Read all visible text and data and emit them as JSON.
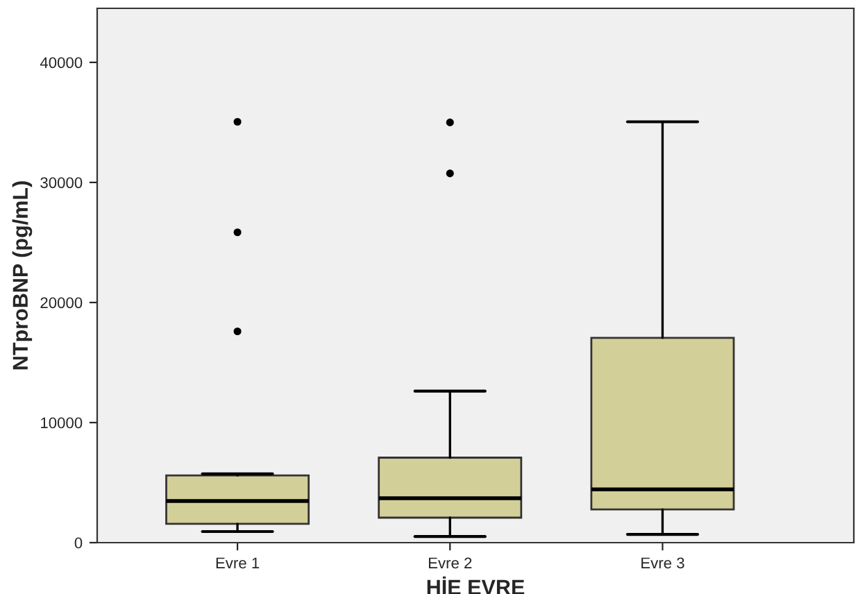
{
  "chart_data": {
    "type": "box",
    "xlabel": "HİE EVRE",
    "ylabel": "NTproBNP (pg/mL)",
    "categories": [
      "Evre 1",
      "Evre 2",
      "Evre 3"
    ],
    "boxes": [
      {
        "low": 925,
        "q1": 1570,
        "median": 3470,
        "q3": 5600,
        "high": 5730,
        "outliers": [
          17600,
          25850,
          35050
        ]
      },
      {
        "low": 510,
        "q1": 2080,
        "median": 3700,
        "q3": 7080,
        "high": 12620,
        "outliers": [
          30750,
          35000
        ]
      },
      {
        "low": 690,
        "q1": 2770,
        "median": 4440,
        "q3": 17060,
        "high": 35050
      }
    ],
    "color": "#d3cf98",
    "ylim": [
      0,
      44500
    ],
    "yticks": [
      0,
      10000,
      20000,
      30000,
      40000
    ],
    "grid": false,
    "legend": false
  }
}
